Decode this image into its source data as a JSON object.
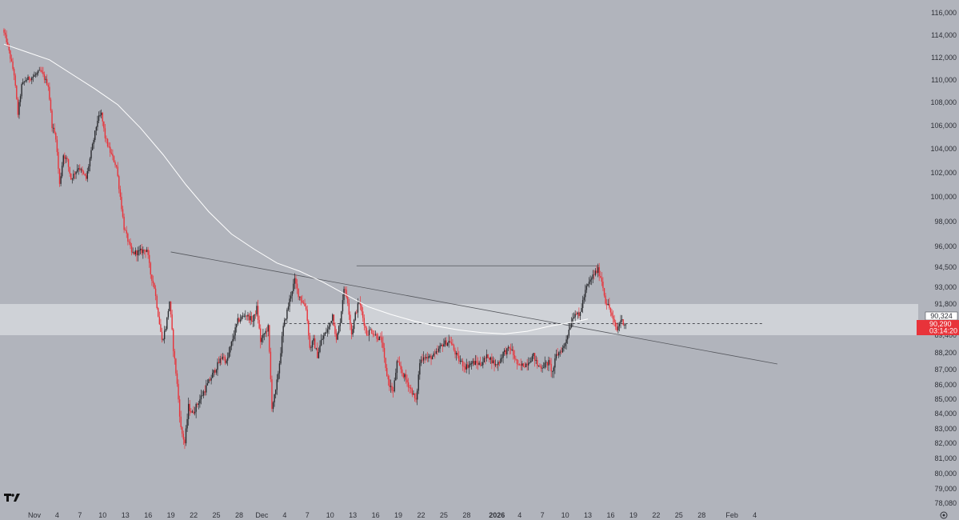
{
  "chart_data": {
    "type": "candlestick",
    "title": "",
    "xlabel": "",
    "ylabel": "",
    "ylim": [
      77500,
      116800
    ],
    "y_axis_ticks": [
      {
        "value": 116000,
        "label": "116,000"
      },
      {
        "value": 114000,
        "label": "114,000"
      },
      {
        "value": 112000,
        "label": "112,000"
      },
      {
        "value": 110000,
        "label": "110,000"
      },
      {
        "value": 108000,
        "label": "108,000"
      },
      {
        "value": 106000,
        "label": "106,000"
      },
      {
        "value": 104000,
        "label": "104,000"
      },
      {
        "value": 102000,
        "label": "102,000"
      },
      {
        "value": 100000,
        "label": "100,000"
      },
      {
        "value": 98000,
        "label": "98,000"
      },
      {
        "value": 96000,
        "label": "96,000"
      },
      {
        "value": 94500,
        "label": "94,500"
      },
      {
        "value": 93000,
        "label": "93,000"
      },
      {
        "value": 91800,
        "label": "91,800"
      },
      {
        "value": 89400,
        "label": "89,400"
      },
      {
        "value": 88200,
        "label": "88,200"
      },
      {
        "value": 87000,
        "label": "87,000"
      },
      {
        "value": 86000,
        "label": "86,000"
      },
      {
        "value": 85000,
        "label": "85,000"
      },
      {
        "value": 84000,
        "label": "84,000"
      },
      {
        "value": 83000,
        "label": "83,000"
      },
      {
        "value": 82000,
        "label": "82,000"
      },
      {
        "value": 81000,
        "label": "81,000"
      },
      {
        "value": 80000,
        "label": "80,000"
      },
      {
        "value": 79000,
        "label": "79,000"
      },
      {
        "value": 78080,
        "label": "78,080"
      }
    ],
    "x_axis_ticks": [
      {
        "t": 0,
        "label": "Nov",
        "bold": false
      },
      {
        "t": 3,
        "label": "4",
        "bold": false
      },
      {
        "t": 6,
        "label": "7",
        "bold": false
      },
      {
        "t": 9,
        "label": "10",
        "bold": false
      },
      {
        "t": 12,
        "label": "13",
        "bold": false
      },
      {
        "t": 15,
        "label": "16",
        "bold": false
      },
      {
        "t": 18,
        "label": "19",
        "bold": false
      },
      {
        "t": 21,
        "label": "22",
        "bold": false
      },
      {
        "t": 24,
        "label": "25",
        "bold": false
      },
      {
        "t": 27,
        "label": "28",
        "bold": false
      },
      {
        "t": 30,
        "label": "Dec",
        "bold": false
      },
      {
        "t": 33,
        "label": "4",
        "bold": false
      },
      {
        "t": 36,
        "label": "7",
        "bold": false
      },
      {
        "t": 39,
        "label": "10",
        "bold": false
      },
      {
        "t": 42,
        "label": "13",
        "bold": false
      },
      {
        "t": 45,
        "label": "16",
        "bold": false
      },
      {
        "t": 48,
        "label": "19",
        "bold": false
      },
      {
        "t": 51,
        "label": "22",
        "bold": false
      },
      {
        "t": 54,
        "label": "25",
        "bold": false
      },
      {
        "t": 57,
        "label": "28",
        "bold": false
      },
      {
        "t": 61,
        "label": "2026",
        "bold": true
      },
      {
        "t": 64,
        "label": "4",
        "bold": false
      },
      {
        "t": 67,
        "label": "7",
        "bold": false
      },
      {
        "t": 70,
        "label": "10",
        "bold": false
      },
      {
        "t": 73,
        "label": "13",
        "bold": false
      },
      {
        "t": 76,
        "label": "16",
        "bold": false
      },
      {
        "t": 79,
        "label": "19",
        "bold": false
      },
      {
        "t": 82,
        "label": "22",
        "bold": false
      },
      {
        "t": 85,
        "label": "25",
        "bold": false
      },
      {
        "t": 88,
        "label": "28",
        "bold": false
      },
      {
        "t": 92,
        "label": "Feb",
        "bold": false
      },
      {
        "t": 95,
        "label": "4",
        "bold": false
      }
    ],
    "price_path": [
      [
        0,
        114500
      ],
      [
        0.5,
        113500
      ],
      [
        1,
        112000
      ],
      [
        1.5,
        110500
      ],
      [
        2,
        107000
      ],
      [
        2.5,
        109500
      ],
      [
        3,
        110000
      ],
      [
        4,
        110300
      ],
      [
        5,
        110800
      ],
      [
        6,
        109500
      ],
      [
        6.5,
        106000
      ],
      [
        7,
        105000
      ],
      [
        7.5,
        101000
      ],
      [
        8,
        103500
      ],
      [
        8.5,
        103000
      ],
      [
        9,
        101500
      ],
      [
        10,
        102500
      ],
      [
        11,
        101500
      ],
      [
        12,
        104800
      ],
      [
        12.5,
        106500
      ],
      [
        13,
        107000
      ],
      [
        13.5,
        105000
      ],
      [
        14,
        104000
      ],
      [
        15,
        102500
      ],
      [
        15.5,
        100000
      ],
      [
        16,
        97500
      ],
      [
        16.5,
        96500
      ],
      [
        17,
        95500
      ],
      [
        18,
        95600
      ],
      [
        19,
        95800
      ],
      [
        19.5,
        94000
      ],
      [
        20,
        93000
      ],
      [
        20.5,
        91000
      ],
      [
        21,
        89000
      ],
      [
        21.5,
        90000
      ],
      [
        22,
        92000
      ],
      [
        22.5,
        88500
      ],
      [
        23,
        86000
      ],
      [
        23.5,
        83000
      ],
      [
        24,
        82000
      ],
      [
        24.5,
        84500
      ],
      [
        25,
        84000
      ],
      [
        26,
        85000
      ],
      [
        27,
        86000
      ],
      [
        28,
        87000
      ],
      [
        29,
        88000
      ],
      [
        29.5,
        87500
      ],
      [
        30,
        88500
      ],
      [
        31,
        90500
      ],
      [
        32,
        91000
      ],
      [
        33,
        90500
      ],
      [
        33.5,
        91500
      ],
      [
        34,
        89000
      ],
      [
        35,
        90000
      ],
      [
        35.5,
        84500
      ],
      [
        36,
        85500
      ],
      [
        36.5,
        87500
      ],
      [
        37,
        90000
      ],
      [
        38,
        92500
      ],
      [
        38.5,
        93500
      ],
      [
        39,
        92500
      ],
      [
        40,
        91500
      ],
      [
        40.5,
        88500
      ],
      [
        41,
        89000
      ],
      [
        41.5,
        88000
      ],
      [
        42,
        89000
      ],
      [
        43,
        90000
      ],
      [
        43.5,
        91000
      ],
      [
        44,
        89000
      ],
      [
        44.5,
        90500
      ],
      [
        45,
        93000
      ],
      [
        45.5,
        92000
      ],
      [
        46,
        89500
      ],
      [
        46.5,
        91000
      ],
      [
        47,
        92000
      ],
      [
        48,
        89500
      ],
      [
        48.5,
        89800
      ],
      [
        49,
        89500
      ],
      [
        50,
        89000
      ],
      [
        50.5,
        87000
      ],
      [
        51,
        86000
      ],
      [
        51.5,
        85500
      ],
      [
        52,
        87500
      ],
      [
        53,
        86500
      ],
      [
        54,
        85500
      ],
      [
        54.5,
        84800
      ],
      [
        55,
        87500
      ],
      [
        55.5,
        88000
      ],
      [
        56,
        87800
      ],
      [
        57,
        88000
      ],
      [
        58,
        88800
      ],
      [
        59,
        89000
      ],
      [
        60,
        87800
      ],
      [
        61,
        87200
      ],
      [
        62,
        87500
      ],
      [
        63,
        87400
      ],
      [
        64,
        88000
      ],
      [
        65,
        87300
      ],
      [
        65.5,
        87600
      ],
      [
        66,
        88200
      ],
      [
        67,
        88500
      ],
      [
        68,
        87200
      ],
      [
        69,
        87400
      ],
      [
        70,
        88000
      ],
      [
        70.5,
        87300
      ],
      [
        71,
        87200
      ],
      [
        72,
        87500
      ],
      [
        72.5,
        86800
      ],
      [
        73,
        88000
      ],
      [
        74,
        88600
      ],
      [
        74.5,
        89500
      ],
      [
        75,
        90500
      ],
      [
        75.5,
        91200
      ],
      [
        76,
        90800
      ],
      [
        76.5,
        92000
      ],
      [
        77,
        93000
      ],
      [
        77.5,
        93500
      ],
      [
        78,
        94000
      ],
      [
        78.5,
        94300
      ],
      [
        79,
        93500
      ],
      [
        79.5,
        92000
      ],
      [
        80,
        91500
      ],
      [
        80.5,
        90500
      ],
      [
        81,
        89800
      ],
      [
        81.5,
        90600
      ],
      [
        82,
        90300
      ]
    ],
    "moving_average": [
      [
        0,
        113200
      ],
      [
        3,
        112500
      ],
      [
        6,
        111800
      ],
      [
        9,
        110500
      ],
      [
        12,
        109200
      ],
      [
        15,
        107800
      ],
      [
        18,
        105800
      ],
      [
        21,
        103500
      ],
      [
        24,
        101000
      ],
      [
        27,
        98800
      ],
      [
        30,
        97000
      ],
      [
        33,
        95800
      ],
      [
        36,
        94800
      ],
      [
        39,
        94200
      ],
      [
        42,
        93400
      ],
      [
        45,
        92500
      ],
      [
        48,
        91600
      ],
      [
        51,
        91000
      ],
      [
        54,
        90500
      ],
      [
        57,
        90100
      ],
      [
        60,
        89800
      ],
      [
        63,
        89600
      ],
      [
        66,
        89500
      ],
      [
        69,
        89700
      ],
      [
        72,
        90100
      ],
      [
        75,
        90400
      ],
      [
        77,
        90650
      ]
    ],
    "support_zone": {
      "low": 89400,
      "high": 91800
    },
    "horizontal_resistance": {
      "t_start": 46.5,
      "t_end": 78.5,
      "value": 94600
    },
    "descending_trendline": {
      "t_start": 22,
      "v_start": 95600,
      "t_end": 102,
      "v_end": 87400
    },
    "current_price_dashed": {
      "t_start": 37,
      "t_end": 100,
      "value": 90290
    },
    "price_labels": {
      "last_close": "90,324",
      "current": "90,290",
      "countdown": "03:14:20"
    },
    "colors": {
      "background": "#b1b4bc",
      "up_candle": "#2a2b2f",
      "down_candle": "#e8333a",
      "moving_average": "#ffffff",
      "support_zone": "#d5d7dc",
      "trendline": "#55575d",
      "axis_text": "#2f3138"
    }
  },
  "ui": {
    "logo_label": "TradingView logo",
    "settings_icon": "gear-icon"
  }
}
